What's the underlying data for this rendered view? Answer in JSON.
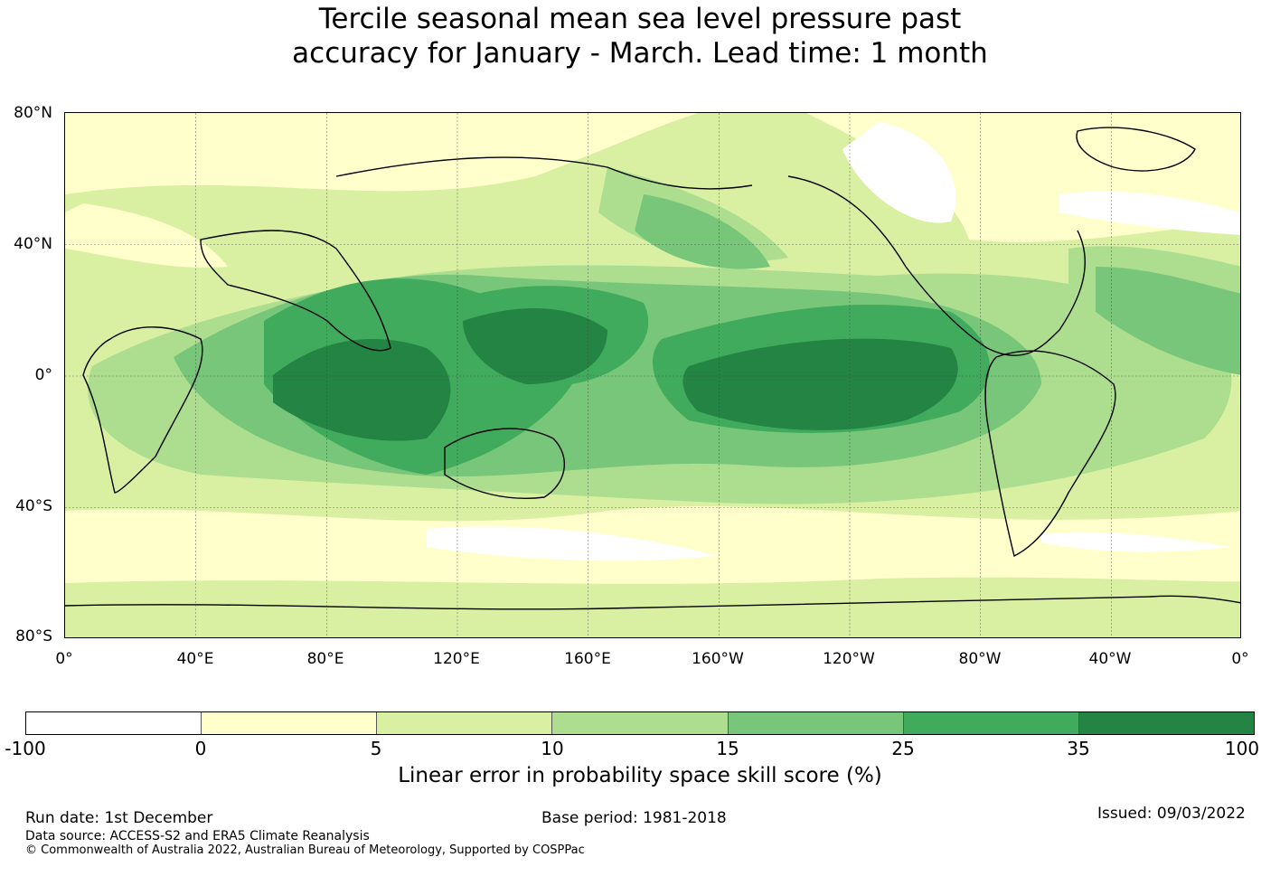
{
  "title": {
    "line1": "Tercile seasonal mean sea level pressure past",
    "line2": "accuracy for January - March. Lead time: 1 month"
  },
  "map": {
    "lat_ticks": [
      "80°N",
      "40°N",
      "0°",
      "40°S",
      "80°S"
    ],
    "lon_ticks": [
      "0°",
      "40°E",
      "80°E",
      "120°E",
      "160°E",
      "160°W",
      "120°W",
      "80°W",
      "40°W",
      "0°"
    ]
  },
  "colorbar": {
    "ticks": [
      "-100",
      "0",
      "5",
      "10",
      "15",
      "25",
      "35",
      "100"
    ],
    "colors": [
      "#ffffff",
      "#ffffcc",
      "#d9f0a3",
      "#addd8e",
      "#78c679",
      "#41ab5d",
      "#238443"
    ],
    "label": "Linear error in probability space skill score (%)"
  },
  "footer": {
    "run_date": "Run date: 1st December",
    "base_period": "Base period: 1981-2018",
    "issued": "Issued: 09/03/2022",
    "data_source": "Data source: ACCESS-S2 and ERA5 Climate Reanalysis",
    "copyright": "© Commonwealth of Australia 2022, Australian Bureau of Meteorology, Supported by COSPPac"
  }
}
